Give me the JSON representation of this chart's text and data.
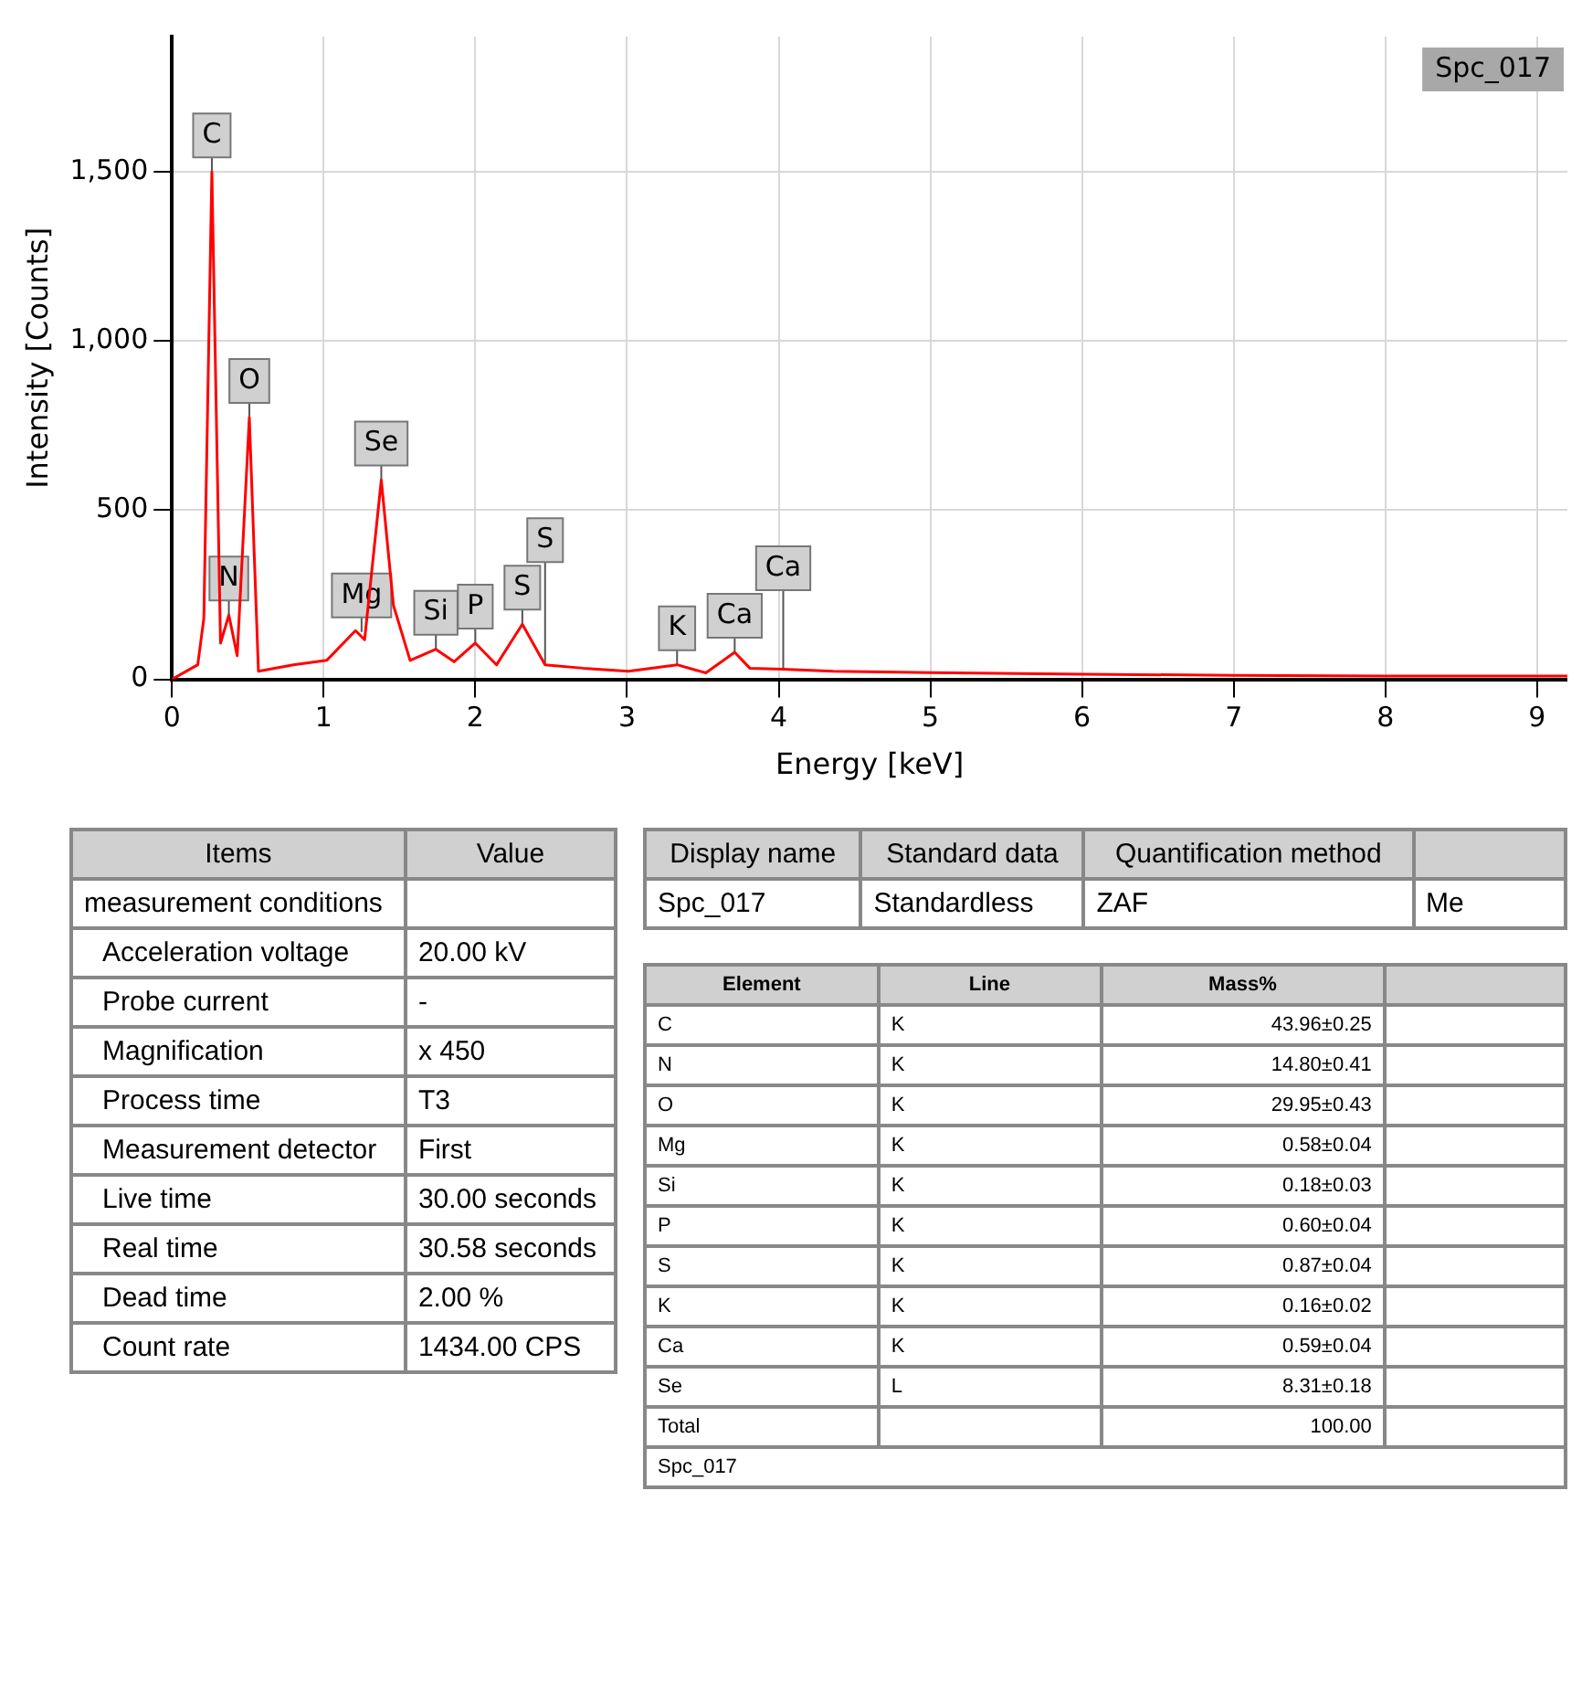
{
  "chart_data": [
    {
      "type": "line",
      "xlabel": "Energy [keV]",
      "ylabel": "Intensity [Counts]",
      "grid": true,
      "xlim": [
        0,
        9.2
      ],
      "xticks": [
        0,
        1,
        2,
        3,
        4,
        5,
        6,
        7,
        8,
        9
      ],
      "ylim": [
        0,
        1900
      ],
      "yticks": [
        0,
        500,
        {
          "value": 1000,
          "label": "1,000"
        },
        {
          "value": 1500,
          "label": "1,500"
        }
      ],
      "series": [
        {
          "color": "#ff0000",
          "x": [
            0,
            0.17,
            0.21,
            0.263,
            0.32,
            0.375,
            0.43,
            0.51,
            0.57,
            0.8,
            1.02,
            1.21,
            1.27,
            1.38,
            1.46,
            1.57,
            1.74,
            1.86,
            2.0,
            2.14,
            2.31,
            2.46,
            2.71,
            3.01,
            3.33,
            3.52,
            3.71,
            3.81,
            4.03,
            4.36,
            5,
            6,
            7,
            8,
            9.2
          ],
          "values": [
            0,
            43,
            180,
            1500,
            107,
            190,
            70,
            774,
            24,
            43,
            56,
            144,
            117,
            589,
            219,
            56,
            89,
            52,
            107,
            43,
            163,
            43,
            33,
            24,
            43,
            19,
            80,
            33,
            30,
            24,
            20,
            15,
            12,
            10,
            10
          ]
        }
      ],
      "annotations": [
        "Spc_017",
        {
          "text": "C",
          "x": 0.263,
          "y": 1500
        },
        {
          "text": "N",
          "x": 0.375,
          "y": 190
        },
        {
          "text": "O",
          "x": 0.51,
          "y": 774
        },
        {
          "text": "Mg",
          "x": 1.25,
          "y": 140
        },
        {
          "text": "Se",
          "x": 1.38,
          "y": 589
        },
        {
          "text": "Si",
          "x": 1.74,
          "y": 89
        },
        {
          "text": "P",
          "x": 2.0,
          "y": 107
        },
        {
          "text": "S",
          "x": 2.31,
          "y": 163
        },
        {
          "text": "S",
          "x": 2.46,
          "y": 43
        },
        {
          "text": "K",
          "x": 3.33,
          "y": 43
        },
        {
          "text": "Ca",
          "x": 3.71,
          "y": 80
        },
        {
          "text": "Ca",
          "x": 4.03,
          "y": 30
        }
      ]
    },
    {
      "type": "other",
      "categories": [
        "Items",
        "Value"
      ],
      "y_categories": [
        "measurement conditions",
        "Acceleration voltage",
        "Probe current",
        "Magnification",
        "Process time",
        "Measurement detector",
        "Live time",
        "Real time",
        "Dead time",
        "Count rate"
      ],
      "cell_labels": [
        [
          null
        ],
        [
          "20.00 kV"
        ],
        [
          "-"
        ],
        [
          "x 450"
        ],
        [
          "T3"
        ],
        [
          "First"
        ],
        [
          "30.00 seconds"
        ],
        [
          "30.58 seconds"
        ],
        [
          "2.00 %"
        ],
        [
          "1434.00 CPS"
        ]
      ]
    },
    {
      "type": "other",
      "categories": [
        "Display name",
        "Standard data",
        "Quantification method",
        null
      ],
      "y_categories": [
        "Spc_017"
      ],
      "cell_labels": [
        [
          "Standardless",
          "ZAF",
          "Me"
        ]
      ]
    },
    {
      "type": "other",
      "categories": [
        "Element",
        "Line",
        "Mass%",
        null
      ],
      "y_categories": [
        "C",
        "N",
        "O",
        "Mg",
        "Si",
        "P",
        "S",
        "K",
        "Ca",
        "Se",
        "Total"
      ],
      "cell_labels": [
        [
          "K",
          "43.96±0.25",
          null
        ],
        [
          "K",
          "14.80±0.41",
          null
        ],
        [
          "K",
          "29.95±0.43",
          null
        ],
        [
          "K",
          "0.58±0.04",
          null
        ],
        [
          "K",
          "0.18±0.03",
          null
        ],
        [
          "K",
          "0.60±0.04",
          null
        ],
        [
          "K",
          "0.87±0.04",
          null
        ],
        [
          "K",
          "0.16±0.02",
          null
        ],
        [
          "K",
          "0.59±0.04",
          null
        ],
        [
          "L",
          "8.31±0.18",
          null
        ],
        [
          null,
          "100.00",
          null
        ]
      ],
      "annotations": [
        "Spc_017"
      ]
    }
  ]
}
